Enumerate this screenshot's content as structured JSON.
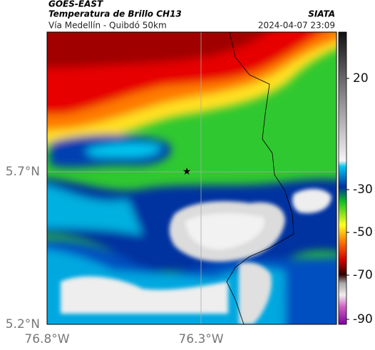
{
  "header": {
    "source": "GOES-EAST",
    "title": "Temperatura de Brillo CH13",
    "org": "SIATA",
    "route": "Vía Medellín - Quibdó 50km",
    "timestamp": "2024-04-07 23:09"
  },
  "map": {
    "lat_labels": [
      "5.7°N",
      "5.2°N"
    ],
    "lon_labels": [
      "76.8°W",
      "76.3°W"
    ]
  },
  "colorbar": {
    "ticks": [
      20,
      -30,
      -50,
      -70,
      -90
    ]
  }
}
